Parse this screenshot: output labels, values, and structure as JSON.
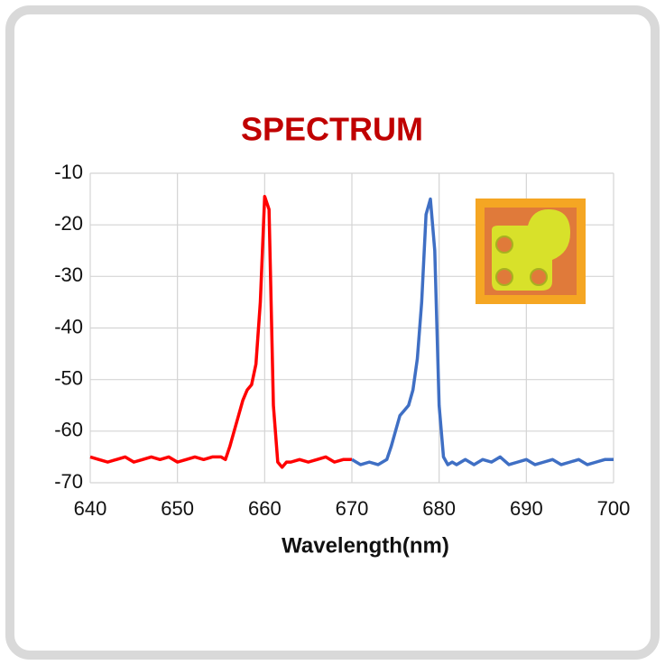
{
  "chart_data": {
    "type": "line",
    "title": "SPECTRUM",
    "x_label": "Wavelength(nm)",
    "x": [
      640,
      641,
      642,
      643,
      644,
      645,
      646,
      647,
      648,
      649,
      650,
      651,
      652,
      653,
      654,
      655,
      655.5,
      656,
      656.5,
      657,
      657.5,
      658,
      658.5,
      659,
      659.5,
      660,
      660.5,
      661,
      661.5,
      662,
      662.5,
      663,
      664,
      665,
      666,
      667,
      668,
      669,
      670,
      671,
      672,
      673,
      674,
      674.5,
      675,
      675.5,
      676,
      676.5,
      677,
      677.5,
      678,
      678.5,
      679,
      679.5,
      680,
      680.5,
      681,
      681.5,
      682,
      683,
      684,
      685,
      686,
      687,
      688,
      689,
      690,
      691,
      692,
      693,
      694,
      695,
      696,
      697,
      698,
      699,
      700
    ],
    "series": [
      {
        "color": "#ff0000",
        "values": [
          -65,
          -65.5,
          -66,
          -65.5,
          -65,
          -66,
          -65.5,
          -65,
          -65.5,
          -65,
          -66,
          -65.5,
          -65,
          -65.5,
          -65,
          -65,
          -65.5,
          -63,
          -60,
          -57,
          -54,
          -52,
          -51,
          -47,
          -35,
          -14.5,
          -17,
          -55,
          -66,
          -67,
          -66,
          -66,
          -65.5,
          -66,
          -65.5,
          -65,
          -66,
          -65.5,
          -65.5,
          null,
          null,
          null,
          null,
          null,
          null,
          null,
          null,
          null,
          null,
          null,
          null,
          null,
          null,
          null,
          null,
          null,
          null,
          null,
          null,
          null,
          null,
          null,
          null,
          null,
          null,
          null,
          null,
          null,
          null,
          null,
          null,
          null,
          null,
          null,
          null,
          null,
          null
        ]
      },
      {
        "color": "#3f6fc4",
        "values": [
          null,
          null,
          null,
          null,
          null,
          null,
          null,
          null,
          null,
          null,
          null,
          null,
          null,
          null,
          null,
          null,
          null,
          null,
          null,
          null,
          null,
          null,
          null,
          null,
          null,
          null,
          null,
          null,
          null,
          null,
          null,
          null,
          null,
          null,
          null,
          null,
          null,
          null,
          -65.5,
          -66.5,
          -66,
          -66.5,
          -65.5,
          -63,
          -60,
          -57,
          -56,
          -55,
          -52,
          -46,
          -35,
          -18,
          -15,
          -25,
          -55,
          -65,
          -66.5,
          -66,
          -66.5,
          -65.5,
          -66.5,
          -65.5,
          -66,
          -65,
          -66.5,
          -66,
          -65.5,
          -66.5,
          -66,
          -65.5,
          -66.5,
          -66,
          -65.5,
          -66.5,
          -66,
          -65.5,
          -65.5
        ]
      }
    ],
    "xlim": [
      640,
      700
    ],
    "xticks": [
      640,
      650,
      660,
      670,
      680,
      690,
      700
    ],
    "ylim": [
      -70,
      -10
    ],
    "yticks": [
      -70,
      -60,
      -50,
      -40,
      -30,
      -20,
      -10
    ],
    "grid": true
  }
}
